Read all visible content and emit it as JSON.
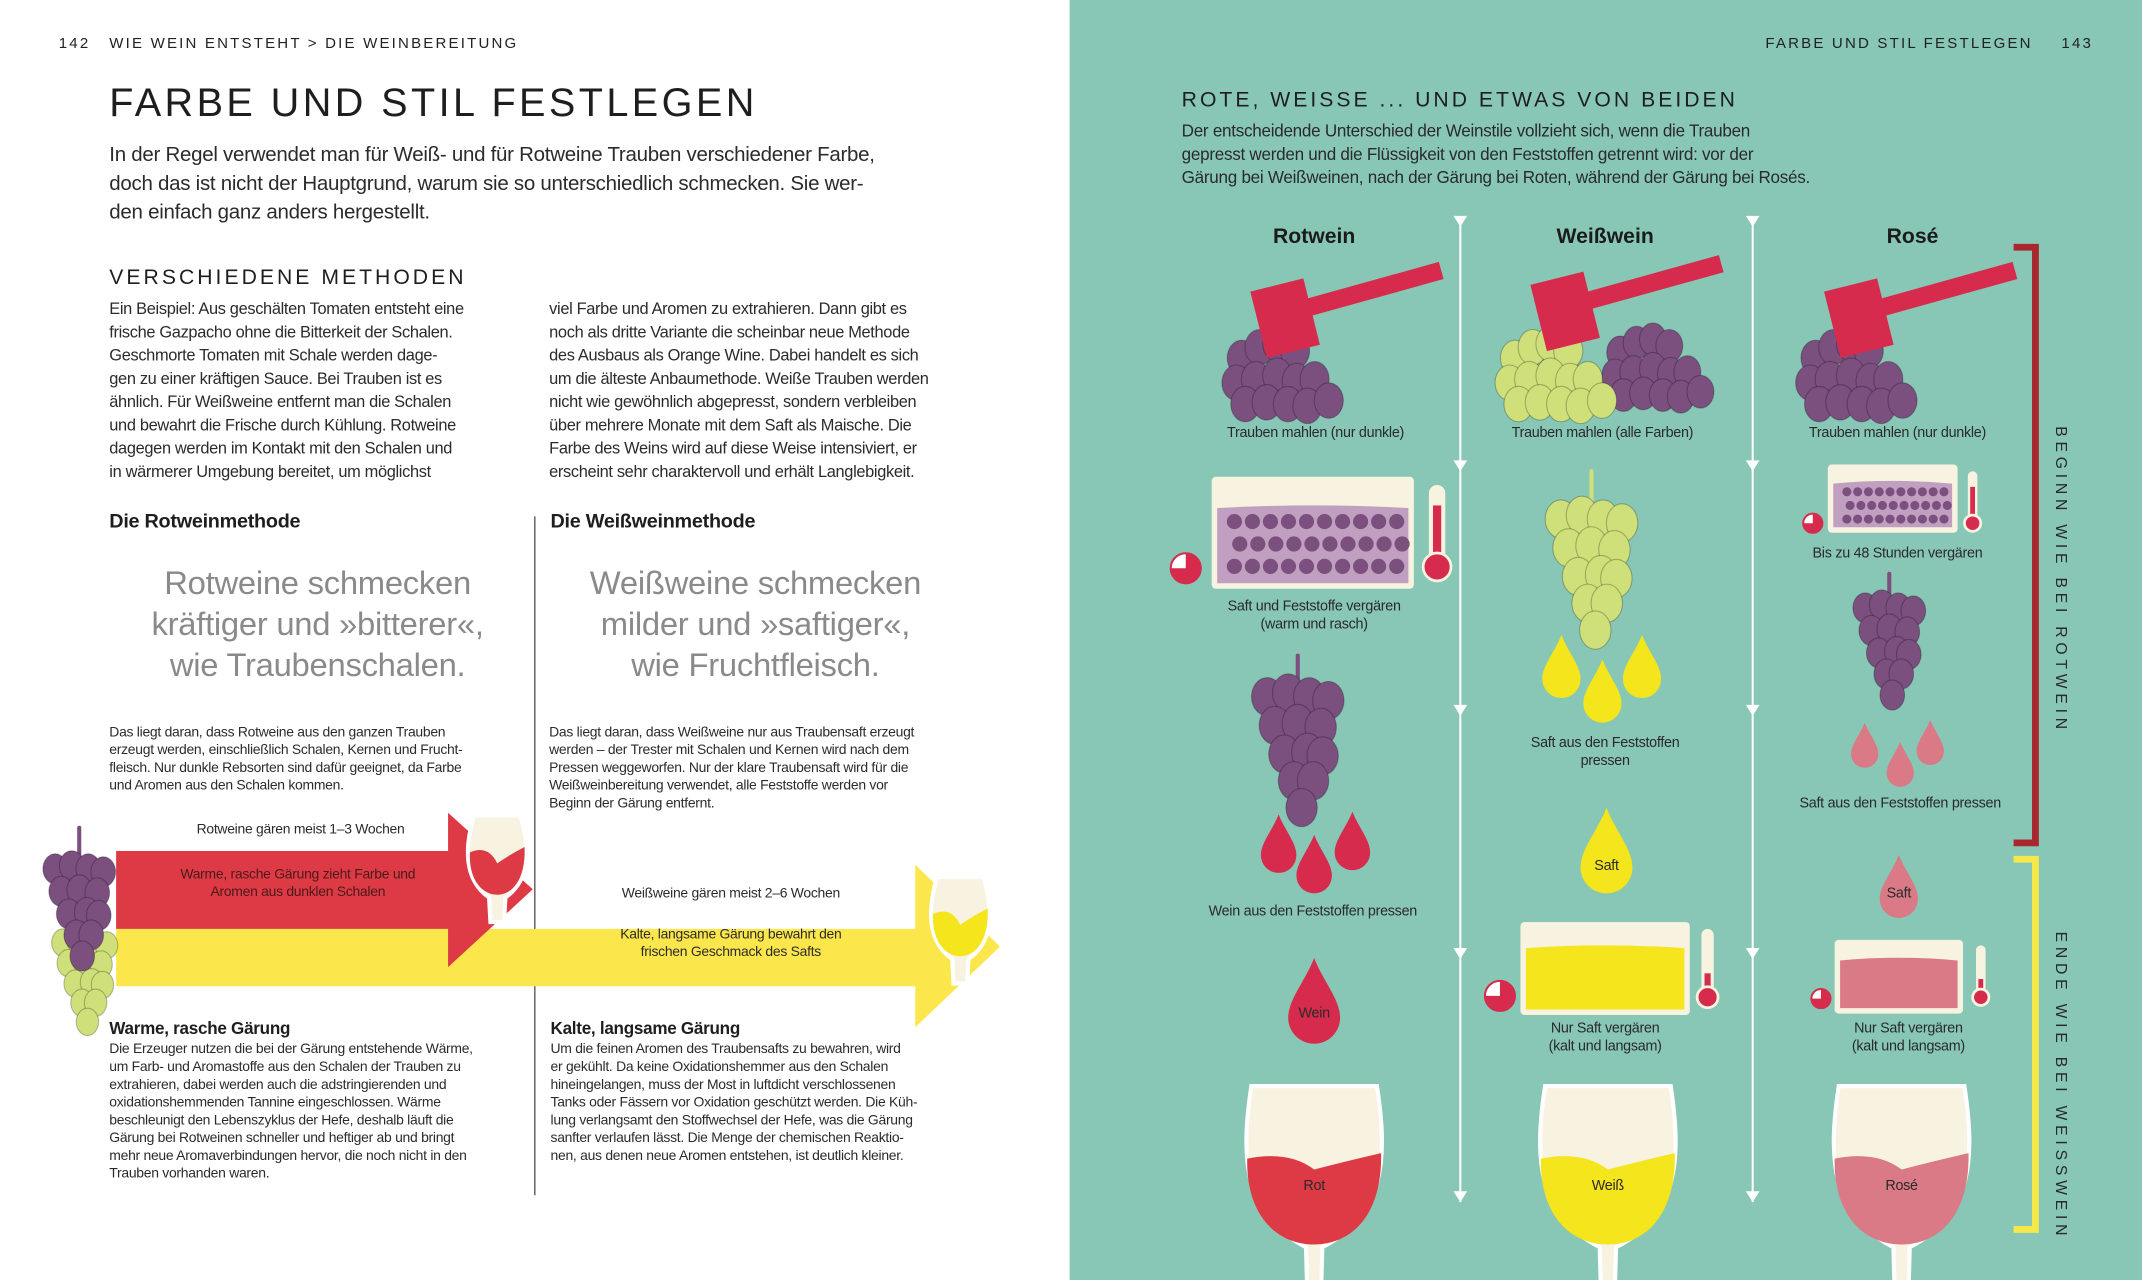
{
  "left_page": {
    "page_number": "142",
    "breadcrumb": "WIE WEIN ENTSTEHT > DIE WEINBEREITUNG",
    "title": "FARBE UND STIL FESTLEGEN",
    "intro": "In der Regel verwendet man für Weiß- und für Rotweine Trauben verschiedener Farbe,\ndoch das ist nicht der Hauptgrund, warum sie so unterschiedlich schmecken. Sie wer-\nden einfach ganz anders hergestellt.",
    "section_heading": "VERSCHIEDENE METHODEN",
    "column1": "Ein Beispiel: Aus geschälten Tomaten entsteht eine\nfrische Gazpacho ohne die Bitterkeit der Schalen.\nGeschmorte Tomaten mit Schale werden dage-\ngen zu einer kräftigen Sauce. Bei Trauben ist es\nähnlich. Für Weißweine entfernt man die Schalen\nund bewahrt die Frische durch Kühlung. Rotweine\ndagegen werden im Kontakt mit den Schalen und\nin wärmerer Umgebung bereitet, um möglichst",
    "column2": "viel Farbe und Aromen zu extrahieren. Dann gibt es\nnoch als dritte Variante die scheinbar neue Methode\ndes Ausbaus als Orange Wine. Dabei handelt es sich\num die älteste Anbaumethode. Weiße Trauben werden\nnicht wie gewöhnlich abgepresst, sondern verbleiben\nüber mehrere Monate mit dem Saft als Maische. Die\nFarbe des Weins wird auf diese Weise intensiviert, er\nerscheint sehr charaktervoll und erhält Langlebigkeit.",
    "red_method": {
      "heading": "Die Rotweinmethode",
      "quote": "Rotweine schmecken\nkräftiger und »bitterer«,\nwie Traubenschalen.",
      "text": "Das liegt daran, dass Rotweine aus den ganzen Trauben\nerzeugt werden, einschließlich Schalen, Kernen und Frucht-\nfleisch. Nur dunkle Rebsorten sind dafür geeignet, da Farbe\nund Aromen aus den Schalen kommen.",
      "arrow_top": "Rotweine gären meist 1–3 Wochen",
      "arrow_label": "Warme, rasche Gärung zieht Farbe und\nAromen aus dunklen Schalen",
      "sub_heading": "Warme, rasche Gärung",
      "sub_text": "Die Erzeuger nutzen die bei der Gärung entstehende Wärme,\num Farb- und Aromastoffe aus den Schalen der Trauben zu\nextrahieren, dabei werden auch die adstringierenden und\noxidationshemmenden Tannine eingeschlossen. Wärme\nbeschleunigt den Lebenszyklus der Hefe, deshalb läuft die\nGärung bei Rotweinen schneller und heftiger ab und bringt\nmehr neue Aromaverbindungen hervor, die noch nicht in den\nTrauben vorhanden waren."
    },
    "white_method": {
      "heading": "Die Weißweinmethode",
      "quote": "Weißweine schmecken\nmilder und »saftiger«,\nwie Fruchtfleisch.",
      "text": "Das liegt daran, dass Weißweine nur aus Traubensaft erzeugt\nwerden – der Trester mit Schalen und Kernen wird nach dem\nPressen weggeworfen. Nur der klare Traubensaft wird für die\nWeißweinbereitung verwendet, alle Feststoffe werden vor\nBeginn der Gärung entfernt.",
      "arrow_top": "Weißweine gären meist 2–6 Wochen",
      "arrow_label": "Kalte, langsame Gärung bewahrt den\nfrischen Geschmack des Safts",
      "sub_heading": "Kalte, langsame Gärung",
      "sub_text": "Um die feinen Aromen des Traubensafts zu bewahren, wird\ner gekühlt. Da keine Oxidationshemmer aus den Schalen\nhineingelangen, muss der Most in luftdicht verschlossenen\nTanks oder Fässern vor Oxidation geschützt werden. Die Küh-\nlung verlangsamt den Stoffwechsel der Hefe, was die Gärung\nsanfter verlaufen lässt. Die Menge der chemischen Reaktio-\nnen, aus denen neue Aromen entstehen, ist deutlich kleiner."
    }
  },
  "right_page": {
    "running_head": "FARBE UND STIL FESTLEGEN",
    "page_number": "143",
    "heading": "ROTE, WEISSE ... UND ETWAS VON BEIDEN",
    "intro": "Der entscheidende Unterschied der Weinstile vollzieht sich, wenn die Trauben\ngepresst werden und die Flüssigkeit von den Feststoffen getrennt wird: vor der\nGärung bei Weißweinen, nach der Gärung bei Roten, während der Gärung bei Rosés.",
    "columns": [
      {
        "title": "Rotwein",
        "step1": "Trauben mahlen (nur dunkle)",
        "step2": "Saft und Feststoffe vergären\n(warm und rasch)",
        "step3": "Wein aus den Feststoffen pressen",
        "drop": "Wein",
        "glass": "Rot"
      },
      {
        "title": "Weißwein",
        "step1": "Trauben mahlen (alle Farben)",
        "step2": "Saft aus den Feststoffen\npressen",
        "drop": "Saft",
        "step3": "Nur Saft vergären\n(kalt und langsam)",
        "glass": "Weiß"
      },
      {
        "title": "Rosé",
        "step1": "Trauben mahlen (nur dunkle)",
        "step2": "Bis zu 48 Stunden vergären",
        "step3": "Saft aus den Feststoffen pressen",
        "drop": "Saft",
        "step4": "Nur Saft vergären\n(kalt und langsam)",
        "glass": "Rosé"
      }
    ],
    "bracket_red": "BEGINN WIE BEI ROTWEIN",
    "bracket_yellow": "ENDE WIE BEI WEISSWEIN"
  },
  "colors": {
    "teal": "#88c7b6",
    "purple_grape": "#7b4f7e",
    "green_grape": "#cfe07a",
    "hammer": "#d62b4c",
    "red_wine": "#dd3a45",
    "white_wine": "#f4e51c",
    "rose": "#d97a86",
    "cream": "#f8f3e0",
    "arrow_yellow": "#fbe74b",
    "bracket_red": "#a8282e",
    "bracket_yellow": "#f6e84a"
  }
}
